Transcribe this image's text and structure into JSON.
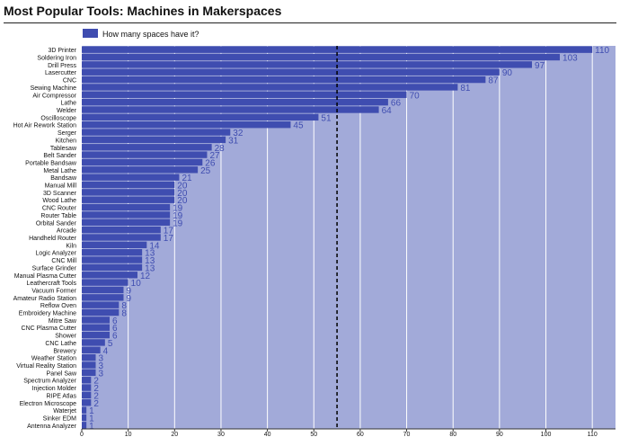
{
  "page": {
    "title": "Most Popular Tools: Machines in Makerspaces"
  },
  "colors": {
    "bar": "#3f4db0",
    "background_band": "#a2aad9",
    "label_text": "#3f4db0",
    "grid": "#ffffff",
    "reference_line": "#000000"
  },
  "chart_data": {
    "type": "bar",
    "orientation": "horizontal",
    "title": "Most Popular Tools: Machines in Makerspaces",
    "xlabel": "",
    "ylabel": "",
    "xlim": [
      0,
      115
    ],
    "xticks": [
      0,
      10,
      20,
      30,
      40,
      50,
      60,
      70,
      80,
      90,
      100,
      110
    ],
    "grid": true,
    "legend_position": "top-left",
    "reference_line": {
      "value": 55,
      "style": "dashed"
    },
    "series": [
      {
        "name": "How many spaces have it?",
        "color": "#3f4db0"
      }
    ],
    "categories": [
      "3D Printer",
      "Soldering Iron",
      "Drill Press",
      "Lasercutter",
      "CNC",
      "Sewing Machine",
      "Air Compressor",
      "Lathe",
      "Welder",
      "Oscilloscope",
      "Hot Air Rework Station",
      "Serger",
      "Kitchen",
      "Tablesaw",
      "Belt Sander",
      "Portable Bandsaw",
      "Metal Lathe",
      "Bandsaw",
      "Manual Mill",
      "3D Scanner",
      "Wood Lathe",
      "CNC Router",
      "Router Table",
      "Orbital Sander",
      "Arcade",
      "Handheld Router",
      "Kiln",
      "Logic Analyzer",
      "CNC Mill",
      "Surface Grinder",
      "Manual Plasma Cutter",
      "Leathercraft Tools",
      "Vacuum Former",
      "Amateur Radio Station",
      "Reflow Oven",
      "Embroidery Machine",
      "Mitre Saw",
      "CNC Plasma Cutter",
      "Shower",
      "CNC Lathe",
      "Brewery",
      "Weather Station",
      "Virtual Reality Station",
      "Panel Saw",
      "Spectrum Analyzer",
      "Injection Molder",
      "RIPE Atlas",
      "Electron Microscope",
      "Waterjet",
      "Sinker EDM",
      "Antenna Analyzer"
    ],
    "values": [
      110,
      103,
      97,
      90,
      87,
      81,
      70,
      66,
      64,
      51,
      45,
      32,
      31,
      28,
      27,
      26,
      25,
      21,
      20,
      20,
      20,
      19,
      19,
      19,
      17,
      17,
      14,
      13,
      13,
      13,
      12,
      10,
      9,
      9,
      8,
      8,
      6,
      6,
      6,
      5,
      4,
      3,
      3,
      3,
      2,
      2,
      2,
      2,
      1,
      1,
      1
    ]
  }
}
